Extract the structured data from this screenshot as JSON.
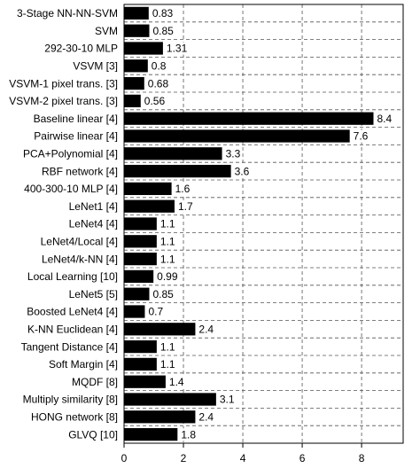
{
  "chart_data": {
    "type": "bar",
    "orientation": "horizontal",
    "categories": [
      "3-Stage NN-NN-SVM",
      "SVM",
      "292-30-10 MLP",
      "VSVM [3]",
      "VSVM-1 pixel trans. [3]",
      "VSVM-2 pixel trans. [3]",
      "Baseline linear [4]",
      "Pairwise linear [4]",
      "PCA+Polynomial [4]",
      "RBF network [4]",
      "400-300-10 MLP [4]",
      "LeNet1 [4]",
      "LeNet4 [4]",
      "LeNet4/Local [4]",
      "LeNet4/k-NN [4]",
      "Local Learning [10]",
      "LeNet5 [5]",
      "Boosted LeNet4 [4]",
      "K-NN Euclidean [4]",
      "Tangent Distance [4]",
      "Soft Margin [4]",
      "MQDF [8]",
      "Multiply similarity [8]",
      "HONG network [8]",
      "GLVQ [10]"
    ],
    "values": [
      0.83,
      0.85,
      1.31,
      0.8,
      0.68,
      0.56,
      8.4,
      7.6,
      3.3,
      3.6,
      1.6,
      1.7,
      1.1,
      1.1,
      1.1,
      0.99,
      0.85,
      0.7,
      2.4,
      1.1,
      1.1,
      1.4,
      3.1,
      2.4,
      1.8
    ],
    "color": "#000000",
    "xlim": [
      0,
      9.4
    ],
    "xticks": [
      0,
      2,
      4,
      6,
      8
    ],
    "grid": true
  }
}
